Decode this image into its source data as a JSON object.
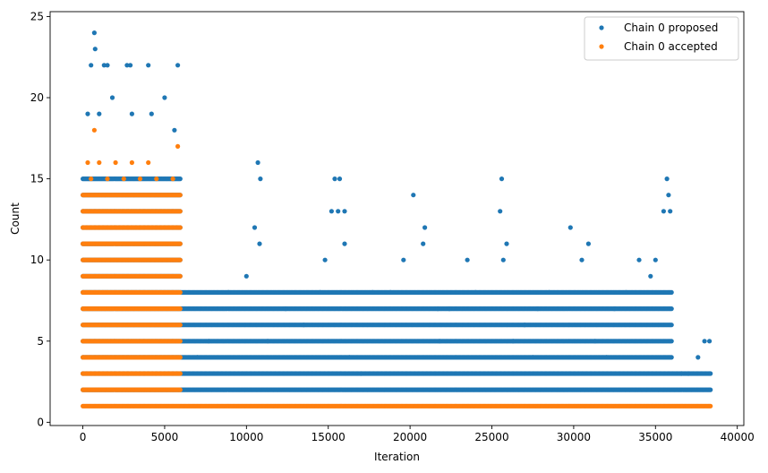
{
  "chart_data": {
    "type": "scatter",
    "xlabel": "Iteration",
    "ylabel": "Count",
    "xlim": [
      -2000,
      40400
    ],
    "ylim": [
      -0.2,
      25.3
    ],
    "x_ticks": [
      0,
      5000,
      10000,
      15000,
      20000,
      25000,
      30000,
      35000,
      40000
    ],
    "y_ticks": [
      0,
      5,
      10,
      15,
      20,
      25
    ],
    "grid": false,
    "legend_position": "top-right",
    "series": [
      {
        "name": "Chain 0 proposed",
        "color": "#1f77b4",
        "segments": [
          {
            "y": 2,
            "x_start": 0,
            "x_end": 38400
          },
          {
            "y": 3,
            "x_start": 0,
            "x_end": 38400
          },
          {
            "y": 4,
            "x_start": 0,
            "x_end": 36000
          },
          {
            "y": 5,
            "x_start": 0,
            "x_end": 36000
          },
          {
            "y": 6,
            "x_start": 0,
            "x_end": 36000
          },
          {
            "y": 7,
            "x_start": 0,
            "x_end": 36000
          },
          {
            "y": 8,
            "x_start": 0,
            "x_end": 36000
          },
          {
            "y": 9,
            "x_start": 0,
            "x_end": 6000
          },
          {
            "y": 10,
            "x_start": 0,
            "x_end": 6000
          },
          {
            "y": 11,
            "x_start": 0,
            "x_end": 6000
          },
          {
            "y": 12,
            "x_start": 0,
            "x_end": 6000
          },
          {
            "y": 13,
            "x_start": 0,
            "x_end": 6000
          },
          {
            "y": 14,
            "x_start": 0,
            "x_end": 6000
          },
          {
            "y": 15,
            "x_start": 0,
            "x_end": 6000
          }
        ],
        "points": [
          [
            700,
            24
          ],
          [
            750,
            23
          ],
          [
            500,
            22
          ],
          [
            1300,
            22
          ],
          [
            1500,
            22
          ],
          [
            2700,
            22
          ],
          [
            2900,
            22
          ],
          [
            4000,
            22
          ],
          [
            5800,
            22
          ],
          [
            300,
            19
          ],
          [
            1000,
            19
          ],
          [
            1800,
            20
          ],
          [
            3000,
            19
          ],
          [
            4200,
            19
          ],
          [
            5000,
            20
          ],
          [
            5600,
            18
          ],
          [
            10700,
            16
          ],
          [
            10850,
            15
          ],
          [
            15400,
            15
          ],
          [
            15700,
            15
          ],
          [
            20200,
            14
          ],
          [
            25600,
            15
          ],
          [
            35700,
            15
          ],
          [
            10500,
            12
          ],
          [
            15200,
            13
          ],
          [
            15600,
            13
          ],
          [
            16000,
            13
          ],
          [
            20900,
            12
          ],
          [
            25500,
            13
          ],
          [
            35500,
            13
          ],
          [
            35800,
            14
          ],
          [
            10800,
            11
          ],
          [
            16000,
            11
          ],
          [
            20800,
            11
          ],
          [
            25900,
            11
          ],
          [
            30900,
            11
          ],
          [
            29800,
            12
          ],
          [
            35900,
            13
          ],
          [
            14800,
            10
          ],
          [
            19600,
            10
          ],
          [
            23500,
            10
          ],
          [
            25700,
            10
          ],
          [
            30500,
            10
          ],
          [
            34000,
            10
          ],
          [
            35000,
            10
          ],
          [
            8900,
            8
          ],
          [
            10000,
            9
          ],
          [
            12400,
            7
          ],
          [
            13500,
            6
          ],
          [
            14500,
            8
          ],
          [
            17700,
            8
          ],
          [
            18800,
            8
          ],
          [
            21700,
            7
          ],
          [
            22400,
            7
          ],
          [
            24000,
            8
          ],
          [
            27000,
            6
          ],
          [
            27800,
            7
          ],
          [
            28500,
            8
          ],
          [
            32500,
            7
          ],
          [
            33200,
            8
          ],
          [
            34700,
            9
          ],
          [
            37600,
            4
          ],
          [
            38000,
            5
          ],
          [
            38300,
            5
          ],
          [
            7000,
            4
          ],
          [
            7700,
            5
          ],
          [
            11300,
            5
          ],
          [
            16300,
            4
          ],
          [
            17000,
            3
          ],
          [
            21800,
            5
          ],
          [
            26300,
            5
          ],
          [
            27500,
            4
          ],
          [
            31300,
            5
          ],
          [
            32000,
            4
          ],
          [
            36600,
            3
          ],
          [
            37000,
            3
          ]
        ]
      },
      {
        "name": "Chain 0 accepted",
        "color": "#ff7f0e",
        "segments": [
          {
            "y": 1,
            "x_start": 0,
            "x_end": 38400
          },
          {
            "y": 2,
            "x_start": 0,
            "x_end": 6000
          },
          {
            "y": 3,
            "x_start": 0,
            "x_end": 6000
          },
          {
            "y": 4,
            "x_start": 0,
            "x_end": 6000
          },
          {
            "y": 5,
            "x_start": 0,
            "x_end": 6000
          },
          {
            "y": 6,
            "x_start": 0,
            "x_end": 6000
          },
          {
            "y": 7,
            "x_start": 0,
            "x_end": 6000
          },
          {
            "y": 8,
            "x_start": 0,
            "x_end": 6000
          },
          {
            "y": 9,
            "x_start": 0,
            "x_end": 6000
          },
          {
            "y": 10,
            "x_start": 0,
            "x_end": 6000
          },
          {
            "y": 11,
            "x_start": 0,
            "x_end": 6000
          },
          {
            "y": 12,
            "x_start": 0,
            "x_end": 6000
          },
          {
            "y": 13,
            "x_start": 0,
            "x_end": 6000
          },
          {
            "y": 14,
            "x_start": 0,
            "x_end": 6000
          }
        ],
        "points": [
          [
            700,
            18
          ],
          [
            5800,
            17
          ],
          [
            300,
            16
          ],
          [
            1000,
            16
          ],
          [
            2000,
            16
          ],
          [
            3000,
            16
          ],
          [
            4000,
            16
          ],
          [
            500,
            15
          ],
          [
            1500,
            15
          ],
          [
            2500,
            15
          ],
          [
            3500,
            15
          ],
          [
            4500,
            15
          ],
          [
            5500,
            15
          ]
        ]
      }
    ]
  }
}
